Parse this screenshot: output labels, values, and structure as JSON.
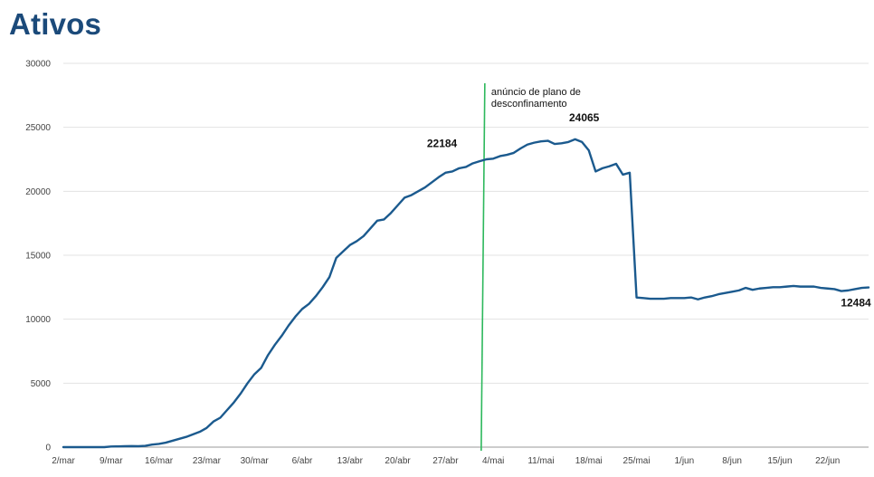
{
  "chart_data": {
    "type": "line",
    "title": "Ativos",
    "xlabel": "",
    "ylabel": "",
    "ylim": [
      0,
      30000
    ],
    "yticks": [
      0,
      5000,
      10000,
      15000,
      20000,
      25000,
      30000
    ],
    "xtick_labels": [
      "2/mar",
      "9/mar",
      "16/mar",
      "23/mar",
      "30/mar",
      "6/abr",
      "13/abr",
      "20/abr",
      "27/abr",
      "4/mai",
      "11/mai",
      "18/mai",
      "25/mai",
      "1/jun",
      "8/jun",
      "15/jun",
      "22/jun"
    ],
    "grid": "horizontal",
    "colors": {
      "series": "#1b5a8e",
      "annotation_line": "#2db85c",
      "grid": "#e3e3e3",
      "title": "#1b4a7a"
    },
    "series": [
      {
        "values": [
          0,
          0,
          0,
          0,
          0,
          0,
          0,
          50,
          60,
          70,
          80,
          70,
          100,
          200,
          250,
          350,
          500,
          650,
          800,
          1000,
          1200,
          1500,
          2000,
          2300,
          2900,
          3500,
          4200,
          5000,
          5700,
          6200,
          7200,
          8000,
          8700,
          9500,
          10200,
          10800,
          11200,
          11800,
          12500,
          13300,
          14800,
          15300,
          15800,
          16100,
          16500,
          17100,
          17700,
          17800,
          18300,
          18900,
          19500,
          19700,
          20000,
          20300,
          20700,
          21100,
          21450,
          21550,
          21800,
          21900,
          22184,
          22350,
          22500,
          22550,
          22750,
          22850,
          23000,
          23350,
          23650,
          23800,
          23900,
          23950,
          23700,
          23750,
          23850,
          24065,
          23850,
          23200,
          21550,
          21800,
          21950,
          22150,
          21300,
          21450,
          11700,
          11650,
          11600,
          11600,
          11600,
          11650,
          11650,
          11650,
          11700,
          11550,
          11700,
          11800,
          11950,
          12050,
          12150,
          12250,
          12450,
          12300,
          12400,
          12450,
          12500,
          12500,
          12550,
          12600,
          12550,
          12550,
          12550,
          12450,
          12400,
          12350,
          12200,
          12250,
          12350,
          12450,
          12484
        ]
      }
    ],
    "data_labels": [
      {
        "text": "22184",
        "index": 60,
        "value": 22184
      },
      {
        "text": "24065",
        "index": 75,
        "value": 24065
      },
      {
        "text": "12484",
        "index": 118,
        "value": 12484
      }
    ],
    "annotation": {
      "text_lines": [
        "anúncio de plano de",
        "desconfinamento"
      ],
      "index": 61.5
    }
  }
}
